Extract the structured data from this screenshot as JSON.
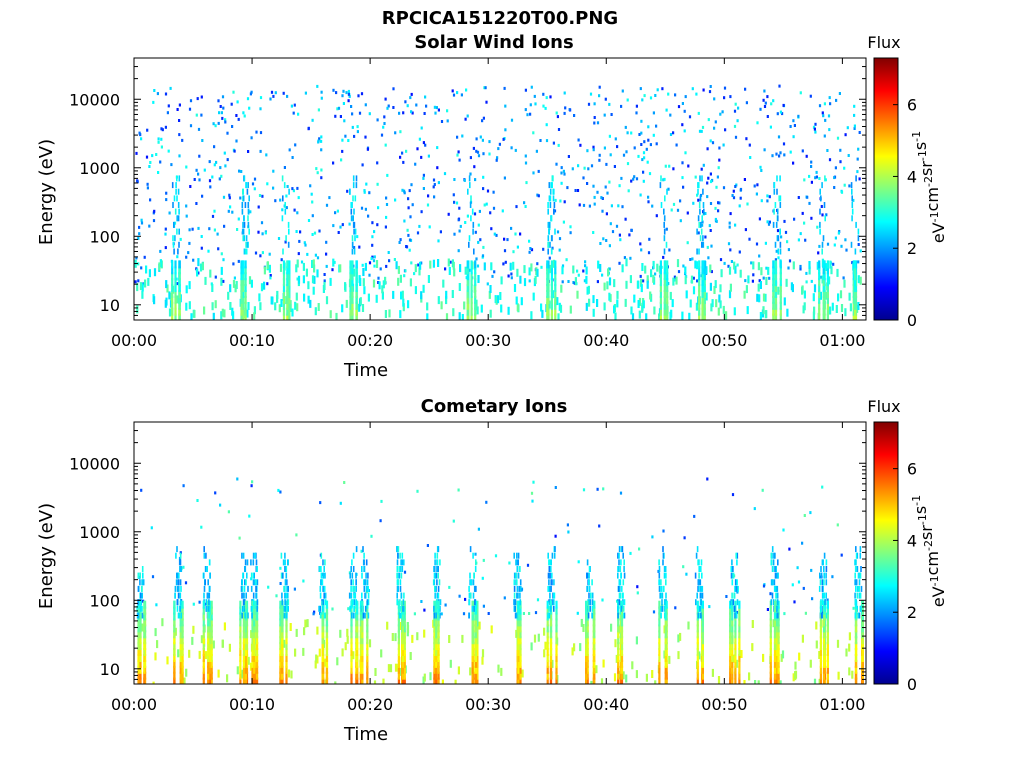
{
  "figure_title": "RPCICA151220T00.PNG",
  "colors": {
    "colormap": [
      "#00008f",
      "#0000ff",
      "#0080ff",
      "#00ffff",
      "#80ff80",
      "#ffff00",
      "#ff8000",
      "#ff0000",
      "#800000"
    ]
  },
  "chart_data": [
    {
      "type": "heatmap",
      "title": "Solar Wind Ions",
      "xlabel": "Time",
      "ylabel": "Energy (eV)",
      "x_ticks": [
        "00:00",
        "00:10",
        "00:20",
        "00:30",
        "00:40",
        "00:50",
        "01:00"
      ],
      "x_tick_minutes": [
        0,
        10,
        20,
        30,
        40,
        50,
        60
      ],
      "xlim_minutes": [
        0,
        62
      ],
      "y_ticks": [
        "10",
        "100",
        "1000",
        "10000"
      ],
      "y_tick_values": [
        10,
        100,
        1000,
        10000
      ],
      "ylim": [
        6,
        40000
      ],
      "y_scale": "log",
      "colorbar": {
        "title": "Flux",
        "label": "eV-1cm-2sr-1s-1",
        "ticks": [
          "0",
          "2",
          "4",
          "6"
        ],
        "tick_values": [
          0,
          2,
          4,
          6
        ],
        "range": [
          0,
          7.3
        ]
      },
      "series": [
        {
          "name": "",
          "energy_eV": [
            8,
            12,
            20,
            35
          ],
          "peak_minutes": [
            3.5,
            9.4,
            12.8,
            18.5,
            28.5,
            35.3,
            44.8,
            47.9,
            54.4,
            58.3,
            61.0
          ],
          "log_flux_range": [
            2.5,
            5.0
          ]
        },
        {
          "name": "",
          "energy_eV": [
            100,
            1000,
            10000
          ],
          "log_flux_range": [
            1.0,
            3.0
          ]
        }
      ]
    },
    {
      "type": "heatmap",
      "title": "Cometary Ions",
      "xlabel": "Time",
      "ylabel": "Energy (eV)",
      "x_ticks": [
        "00:00",
        "00:10",
        "00:20",
        "00:30",
        "00:40",
        "00:50",
        "01:00"
      ],
      "x_tick_minutes": [
        0,
        10,
        20,
        30,
        40,
        50,
        60
      ],
      "xlim_minutes": [
        0,
        62
      ],
      "y_ticks": [
        "10",
        "100",
        "1000",
        "10000"
      ],
      "y_tick_values": [
        10,
        100,
        1000,
        10000
      ],
      "ylim": [
        6,
        40000
      ],
      "y_scale": "log",
      "colorbar": {
        "title": "Flux",
        "label": "eV-1cm-2sr-1s-1",
        "ticks": [
          "0",
          "2",
          "4",
          "6"
        ],
        "tick_values": [
          0,
          2,
          4,
          6
        ],
        "range": [
          0,
          7.3
        ]
      },
      "series": [
        {
          "name": "",
          "energy_eV": [
            7,
            10,
            15,
            25,
            40
          ],
          "peak_minutes": [
            0.5,
            3.7,
            6.1,
            9.3,
            10.1,
            12.7,
            15.9,
            18.5,
            19.5,
            22.5,
            25.6,
            28.6,
            32.4,
            35.3,
            38.5,
            41.2,
            44.7,
            47.8,
            50.8,
            54.2,
            58.3,
            61.3
          ],
          "log_flux_range": [
            3.5,
            7.0
          ]
        },
        {
          "name": "",
          "energy_eV": [
            100,
            300,
            1000,
            5000
          ],
          "log_flux_range": [
            1.0,
            3.5
          ]
        }
      ]
    }
  ]
}
